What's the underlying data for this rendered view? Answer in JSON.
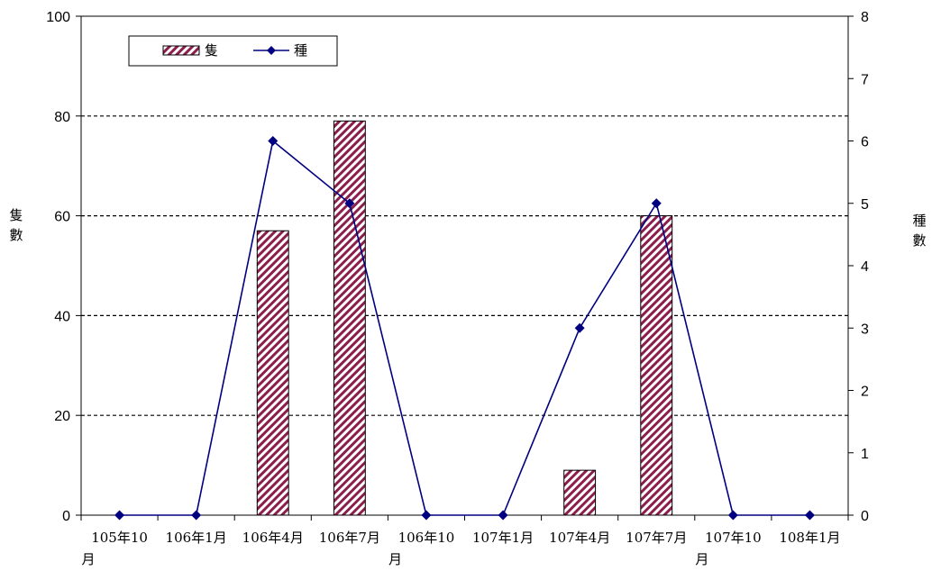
{
  "chart_data": {
    "type": "bar",
    "categories": [
      [
        "105年10",
        "月"
      ],
      [
        "106年1月"
      ],
      [
        "106年4月"
      ],
      [
        "106年7月"
      ],
      [
        "106年10",
        "月"
      ],
      [
        "107年1月"
      ],
      [
        "107年4月"
      ],
      [
        "107年7月"
      ],
      [
        "107年10",
        "月"
      ],
      [
        "108年1月"
      ]
    ],
    "series": [
      {
        "name": "隻",
        "type": "bar",
        "axis": "left",
        "values": [
          0,
          0,
          57,
          79,
          0,
          0,
          9,
          60,
          0,
          0
        ]
      },
      {
        "name": "種",
        "type": "line",
        "axis": "right",
        "values": [
          0,
          0,
          6,
          5,
          0,
          0,
          3,
          5,
          0,
          0
        ]
      }
    ],
    "ylabel": "隻數",
    "y2label": "種數",
    "ylim": [
      0,
      100
    ],
    "y2lim": [
      0,
      8
    ],
    "yticks": [
      0,
      20,
      40,
      60,
      80,
      100
    ],
    "y2ticks": [
      0,
      1,
      2,
      3,
      4,
      5,
      6,
      7,
      8
    ],
    "grid": "dashed horizontal at 20, 40, 60, 80",
    "legend": "top-left inside plot",
    "colors": {
      "bar_stripe": "#8b1e4d",
      "line": "#000080",
      "axis": "#000000"
    }
  }
}
